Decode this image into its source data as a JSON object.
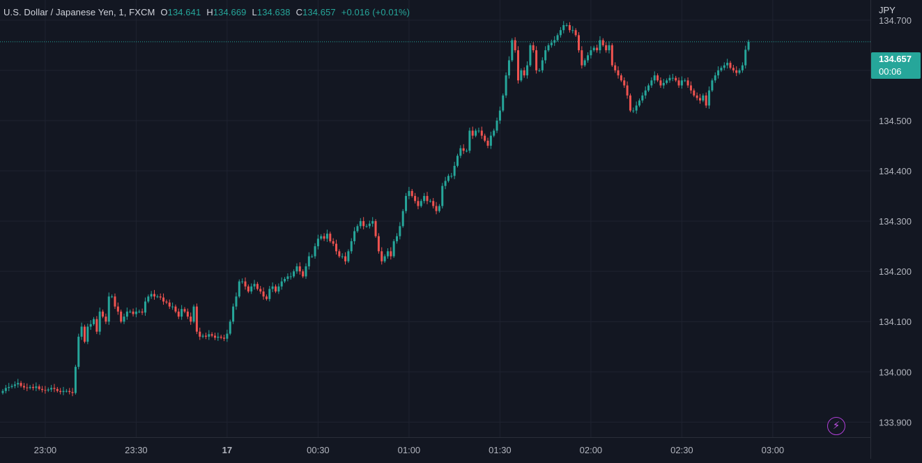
{
  "legend": {
    "symbol": "U.S. Dollar / Japanese Yen, 1, FXCM",
    "open_label": "O",
    "open": "134.641",
    "high_label": "H",
    "high": "134.669",
    "low_label": "L",
    "low": "134.638",
    "close_label": "C",
    "close": "134.657",
    "change": "+0.016 (+0.01%)"
  },
  "currency": "JPY",
  "last_price": {
    "price": "134.657",
    "countdown": "00:06"
  },
  "flash_button": {
    "icon": "lightning-icon",
    "glyph": "⚡"
  },
  "colors": {
    "up": "#26a69a",
    "down": "#ef5350",
    "background": "#131722",
    "grid": "#1f2330",
    "text": "#d1d4dc"
  },
  "chart_data": {
    "type": "candlestick",
    "title": "U.S. Dollar / Japanese Yen, 1, FXCM",
    "y_unit": "JPY",
    "ylim": [
      133.87,
      134.74
    ],
    "y_ticks": [
      "134.700",
      "134.600",
      "134.500",
      "134.400",
      "134.300",
      "134.200",
      "134.100",
      "134.000",
      "133.900"
    ],
    "x_ticks": [
      "23:00",
      "23:30",
      "17",
      "00:30",
      "01:00",
      "01:30",
      "02:00",
      "02:30",
      "03:00"
    ],
    "grid": true,
    "last_price": 134.657,
    "start_time": "22:46",
    "interval_minutes": 1,
    "closes": [
      133.962,
      133.968,
      133.97,
      133.972,
      133.975,
      133.978,
      133.972,
      133.969,
      133.968,
      133.97,
      133.968,
      133.971,
      133.966,
      133.964,
      133.963,
      133.965,
      133.968,
      133.966,
      133.962,
      133.96,
      133.962,
      133.962,
      133.96,
      133.958,
      134.01,
      134.07,
      134.09,
      134.06,
      134.09,
      134.095,
      134.105,
      134.08,
      134.12,
      134.11,
      134.1,
      134.15,
      134.15,
      134.13,
      134.12,
      134.1,
      134.11,
      134.12,
      134.12,
      134.115,
      134.12,
      134.12,
      134.118,
      134.14,
      134.15,
      134.155,
      134.15,
      134.15,
      134.148,
      134.14,
      134.138,
      134.13,
      134.13,
      134.12,
      134.11,
      134.125,
      134.12,
      134.11,
      134.1,
      134.13,
      134.08,
      134.07,
      134.072,
      134.07,
      134.075,
      134.072,
      134.068,
      134.07,
      134.068,
      134.066,
      134.076,
      134.1,
      134.13,
      134.15,
      134.18,
      134.18,
      134.17,
      134.16,
      134.17,
      134.175,
      134.165,
      134.16,
      134.15,
      134.145,
      134.165,
      134.17,
      134.16,
      134.17,
      134.18,
      134.185,
      134.19,
      134.19,
      134.2,
      134.21,
      134.2,
      134.19,
      134.21,
      134.23,
      134.23,
      134.25,
      134.265,
      134.27,
      134.265,
      134.275,
      134.26,
      134.255,
      134.24,
      134.23,
      134.23,
      134.22,
      134.24,
      134.26,
      134.28,
      134.29,
      134.3,
      134.29,
      134.29,
      134.295,
      134.3,
      134.27,
      134.24,
      134.22,
      134.23,
      134.24,
      134.23,
      134.26,
      134.27,
      134.29,
      134.32,
      134.35,
      134.36,
      134.35,
      134.34,
      134.33,
      134.34,
      134.35,
      134.34,
      134.34,
      134.33,
      134.32,
      134.33,
      134.37,
      134.38,
      134.39,
      134.39,
      134.41,
      134.43,
      134.445,
      134.44,
      134.44,
      134.48,
      134.47,
      134.48,
      134.48,
      134.47,
      134.46,
      134.45,
      134.47,
      134.48,
      134.5,
      134.52,
      134.55,
      134.59,
      134.62,
      134.66,
      134.64,
      134.58,
      134.6,
      134.59,
      134.61,
      134.65,
      134.64,
      134.6,
      134.6,
      134.62,
      134.64,
      134.65,
      134.655,
      134.66,
      134.67,
      134.68,
      134.69,
      134.69,
      134.68,
      134.68,
      134.67,
      134.64,
      134.61,
      134.62,
      134.63,
      134.64,
      134.645,
      134.64,
      134.66,
      134.65,
      134.64,
      134.65,
      134.61,
      134.6,
      134.59,
      134.58,
      134.57,
      134.55,
      134.52,
      134.52,
      134.53,
      134.54,
      134.55,
      134.56,
      134.57,
      134.58,
      134.59,
      134.58,
      134.57,
      134.575,
      134.58,
      134.585,
      134.585,
      134.58,
      134.57,
      134.58,
      134.58,
      134.57,
      134.56,
      134.55,
      134.545,
      134.54,
      134.55,
      134.53,
      134.56,
      134.58,
      134.59,
      134.6,
      134.605,
      134.61,
      134.615,
      134.605,
      134.6,
      134.595,
      134.6,
      134.61,
      134.641,
      134.657
    ]
  }
}
